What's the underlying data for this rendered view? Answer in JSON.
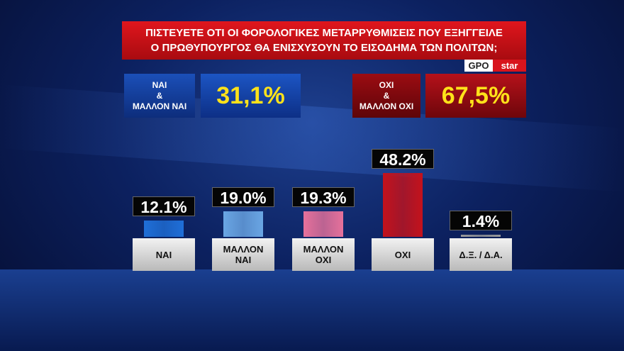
{
  "header": {
    "title_lines": [
      "ΠΙΣΤΕΥΕΤΕ ΟΤΙ ΟΙ ΦΟΡΟΛΟΓΙΚΕΣ ΜΕΤΑΡΡΥΘΜΙΣΕΙΣ ΠΟΥ ΕΞΗΓΓΕΙΛΕ",
      "Ο ΠΡΩΘΥΠΟΥΡΓΟΣ ΘΑ ΕΝΙΣΧΥΣΟΥΝ ΤΟ ΕΙΣΟΔΗΜΑ ΤΩΝ ΠΟΛΙΤΩΝ;"
    ],
    "logos": [
      "GPO",
      "star"
    ]
  },
  "summary": [
    {
      "label_lines": [
        "ΝΑΙ",
        "&",
        "ΜΑΛΛΟΝ ΝΑΙ"
      ],
      "value": "31,1%"
    },
    {
      "label_lines": [
        "ΟΧΙ",
        "&",
        "ΜΑΛΛΟΝ ΟΧΙ"
      ],
      "value": "67,5%"
    }
  ],
  "chart_data": {
    "type": "bar",
    "categories": [
      "ΝΑΙ",
      "ΜΑΛΛΟΝ ΝΑΙ",
      "ΜΑΛΛΟΝ ΟΧΙ",
      "ΟΧΙ",
      "Δ.Ξ. / Δ.Α."
    ],
    "values": [
      12.1,
      19.0,
      19.3,
      48.2,
      1.4
    ],
    "value_labels": [
      "12.1%",
      "19.0%",
      "19.3%",
      "48.2%",
      "1.4%"
    ],
    "colors": [
      "#1f6fd8",
      "#6aa6e4",
      "#e6719b",
      "#c4121c",
      "#9a9a9a"
    ]
  }
}
